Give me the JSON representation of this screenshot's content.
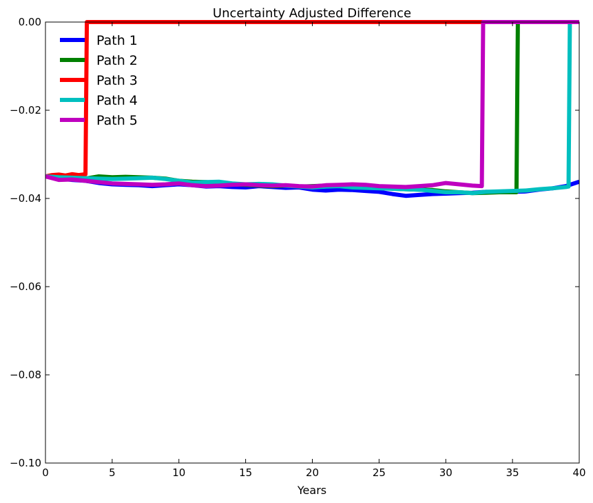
{
  "chart_data": {
    "type": "line",
    "title": "Uncertainty Adjusted Difference",
    "xlabel": "Years",
    "ylabel": "",
    "xlim": [
      0,
      40
    ],
    "ylim": [
      -0.1,
      0.0
    ],
    "xticks": [
      0,
      5,
      10,
      15,
      20,
      25,
      30,
      35,
      40
    ],
    "yticks": [
      0.0,
      -0.02,
      -0.04,
      -0.06,
      -0.08,
      -0.1
    ],
    "xtick_labels": [
      "0",
      "5",
      "10",
      "15",
      "20",
      "25",
      "30",
      "35",
      "40"
    ],
    "ytick_labels": [
      "0.00",
      "−0.02",
      "−0.04",
      "−0.06",
      "−0.08",
      "−0.10"
    ],
    "legend_position": "top-left",
    "grid": false,
    "series": [
      {
        "name": "Path 1",
        "color": "#0000ff",
        "x": [
          0,
          1,
          2,
          3,
          4,
          5,
          6,
          7,
          8,
          9,
          10,
          11,
          12,
          13,
          14,
          15,
          16,
          17,
          18,
          19,
          20,
          21,
          22,
          23,
          24,
          25,
          26,
          27,
          28,
          29,
          30,
          31,
          32,
          33,
          34,
          35,
          36,
          37,
          38,
          39,
          40
        ],
        "y": [
          -0.035,
          -0.0355,
          -0.0358,
          -0.036,
          -0.0365,
          -0.0368,
          -0.0369,
          -0.037,
          -0.0372,
          -0.037,
          -0.0368,
          -0.037,
          -0.0373,
          -0.0372,
          -0.0374,
          -0.0375,
          -0.0372,
          -0.0374,
          -0.0376,
          -0.0375,
          -0.038,
          -0.0382,
          -0.038,
          -0.0381,
          -0.0383,
          -0.0385,
          -0.039,
          -0.0394,
          -0.0392,
          -0.039,
          -0.0389,
          -0.0388,
          -0.0387,
          -0.0385,
          -0.0386,
          -0.0385,
          -0.0384,
          -0.038,
          -0.0377,
          -0.0372,
          -0.0362
        ]
      },
      {
        "name": "Path 2",
        "color": "#008000",
        "x": [
          0,
          1,
          2,
          3,
          4,
          5,
          6,
          7,
          8,
          9,
          10,
          11,
          12,
          13,
          14,
          15,
          16,
          17,
          18,
          19,
          20,
          21,
          22,
          23,
          24,
          25,
          26,
          27,
          28,
          29,
          30,
          31,
          32,
          33,
          34,
          35,
          35.3,
          35.4,
          36,
          38,
          40
        ],
        "y": [
          -0.035,
          -0.0352,
          -0.0354,
          -0.0355,
          -0.035,
          -0.0352,
          -0.0351,
          -0.0352,
          -0.0353,
          -0.0355,
          -0.036,
          -0.0362,
          -0.0363,
          -0.0365,
          -0.0368,
          -0.0369,
          -0.0371,
          -0.0372,
          -0.0371,
          -0.0373,
          -0.0372,
          -0.0371,
          -0.037,
          -0.0372,
          -0.0375,
          -0.0376,
          -0.0378,
          -0.0379,
          -0.038,
          -0.0381,
          -0.0384,
          -0.0386,
          -0.0388,
          -0.0387,
          -0.0386,
          -0.0386,
          -0.0386,
          0.0,
          0.0,
          0.0,
          0.0
        ]
      },
      {
        "name": "Path 3",
        "color": "#ff0000",
        "x": [
          0,
          0.5,
          1,
          1.5,
          2,
          2.5,
          3.0,
          3.1,
          5,
          10,
          20,
          30,
          40
        ],
        "y": [
          -0.035,
          -0.0347,
          -0.0346,
          -0.0348,
          -0.0345,
          -0.0347,
          -0.0345,
          0.0,
          0.0,
          0.0,
          0.0,
          0.0,
          0.0
        ]
      },
      {
        "name": "Path 4",
        "color": "#00bfbf",
        "x": [
          0,
          1,
          2,
          3,
          4,
          5,
          6,
          7,
          8,
          9,
          10,
          11,
          12,
          13,
          14,
          15,
          16,
          17,
          18,
          19,
          20,
          21,
          22,
          23,
          24,
          25,
          26,
          27,
          28,
          29,
          30,
          31,
          32,
          33,
          34,
          35,
          36,
          37,
          38,
          39,
          39.2,
          39.3,
          40
        ],
        "y": [
          -0.035,
          -0.0352,
          -0.0353,
          -0.0354,
          -0.0355,
          -0.0356,
          -0.0355,
          -0.0354,
          -0.0353,
          -0.0356,
          -0.036,
          -0.0364,
          -0.0363,
          -0.0362,
          -0.0366,
          -0.0368,
          -0.0367,
          -0.0368,
          -0.0371,
          -0.0373,
          -0.0375,
          -0.0373,
          -0.0372,
          -0.0375,
          -0.0376,
          -0.0377,
          -0.0378,
          -0.0379,
          -0.038,
          -0.0383,
          -0.0386,
          -0.0386,
          -0.0388,
          -0.0385,
          -0.0384,
          -0.0383,
          -0.0382,
          -0.0379,
          -0.0377,
          -0.0374,
          -0.0373,
          0.0,
          0.0
        ]
      },
      {
        "name": "Path 5",
        "color": "#bf00bf",
        "x": [
          0,
          1,
          2,
          3,
          4,
          5,
          6,
          7,
          8,
          9,
          10,
          11,
          12,
          13,
          14,
          15,
          16,
          17,
          18,
          19,
          20,
          21,
          22,
          23,
          24,
          25,
          26,
          27,
          28,
          29,
          30,
          31,
          32,
          32.7,
          32.8,
          35,
          40
        ],
        "y": [
          -0.035,
          -0.0358,
          -0.0357,
          -0.036,
          -0.0363,
          -0.0366,
          -0.0367,
          -0.0368,
          -0.0369,
          -0.0368,
          -0.0366,
          -0.037,
          -0.0372,
          -0.0371,
          -0.0369,
          -0.0368,
          -0.037,
          -0.0371,
          -0.037,
          -0.0372,
          -0.0373,
          -0.037,
          -0.0369,
          -0.0368,
          -0.0369,
          -0.0372,
          -0.0373,
          -0.0374,
          -0.0372,
          -0.037,
          -0.0365,
          -0.0368,
          -0.0371,
          -0.0372,
          0.0,
          0.0,
          0.0
        ]
      }
    ]
  }
}
